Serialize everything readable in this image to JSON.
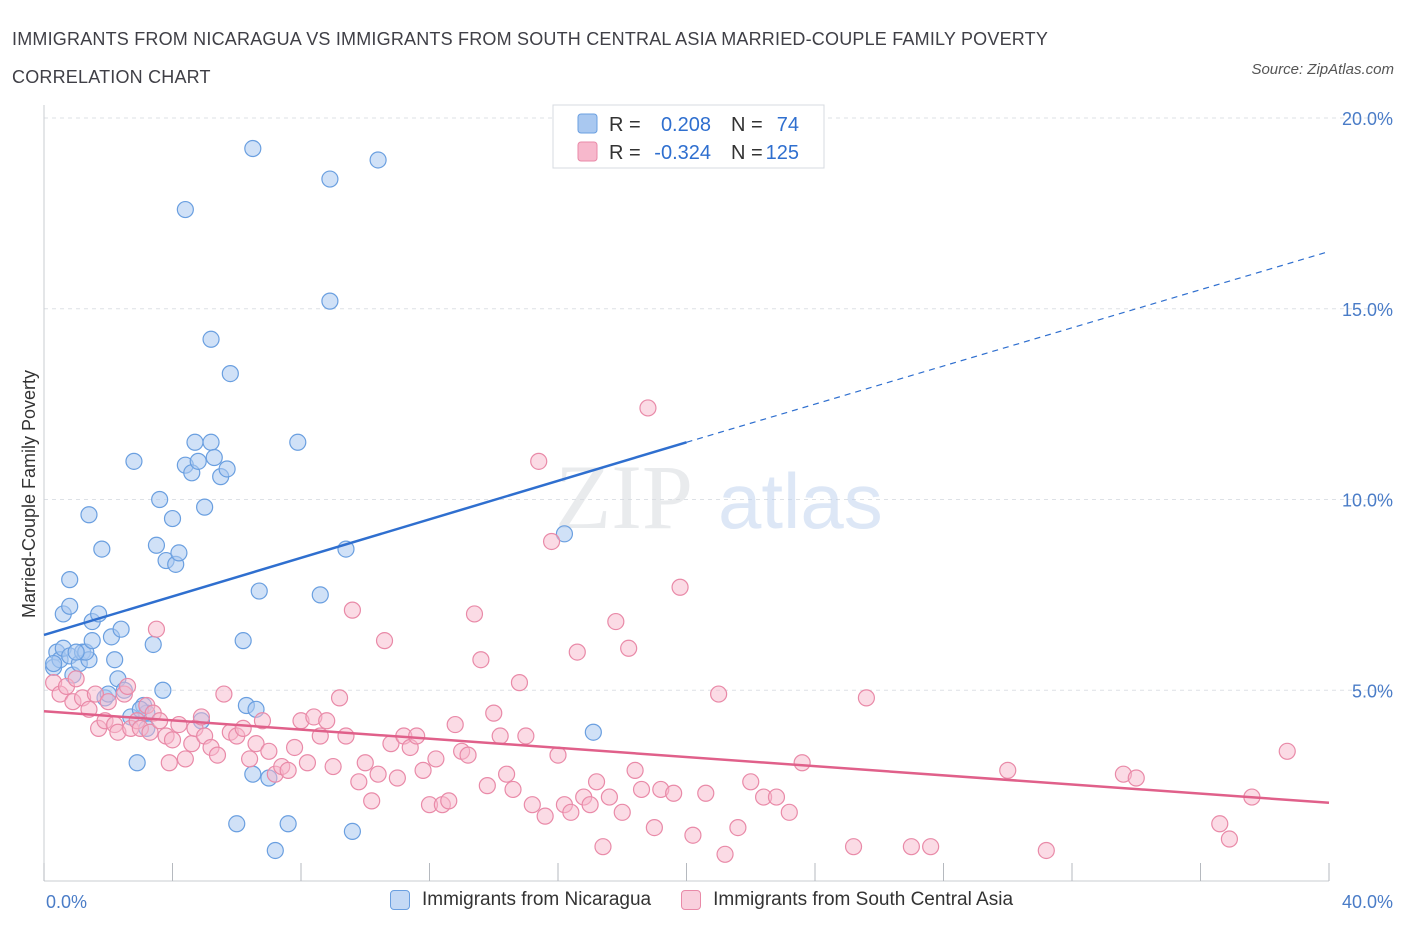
{
  "header": {
    "title": "IMMIGRANTS FROM NICARAGUA VS IMMIGRANTS FROM SOUTH CENTRAL ASIA MARRIED-COUPLE FAMILY POVERTY CORRELATION CHART",
    "source": "Source: ZipAtlas.com"
  },
  "watermark": {
    "zip": "ZIP",
    "atlas": "atlas"
  },
  "legend": {
    "r_label": "R =",
    "n_label": "N =",
    "series": [
      {
        "r": "0.208",
        "n": "74"
      },
      {
        "r": "-0.324",
        "n": "125"
      }
    ]
  },
  "bottom_legend": {
    "nicaragua": "Immigrants from Nicaragua",
    "south_central_asia": "Immigrants from South Central Asia"
  },
  "colors": {
    "blue_fill": "#a9c8f0",
    "blue_stroke": "#6a9fe0",
    "blue_line": "#2f6fcf",
    "pink_fill": "#f7b8cc",
    "pink_stroke": "#e98aa8",
    "pink_line": "#e0608a",
    "tick_text": "#4a7cc7",
    "grid": "#dde1e6"
  },
  "chart_data": {
    "type": "scatter",
    "title": "IMMIGRANTS FROM NICARAGUA VS IMMIGRANTS FROM SOUTH CENTRAL ASIA MARRIED-COUPLE FAMILY POVERTY CORRELATION CHART",
    "xlabel": "",
    "ylabel": "Married-Couple Family Poverty",
    "xlim": [
      0,
      40
    ],
    "ylim": [
      0,
      20
    ],
    "x_tick_labels": [
      "0.0%",
      "40.0%"
    ],
    "y_ticks": [
      5,
      10,
      15,
      20
    ],
    "y_tick_labels": [
      "5.0%",
      "10.0%",
      "15.0%",
      "20.0%"
    ],
    "grid": true,
    "legend_position": "top-center",
    "series": [
      {
        "name": "Immigrants from Nicaragua",
        "r": 0.208,
        "n": 74,
        "trend": {
          "x0": 0,
          "y0": 6.45,
          "x1": 20,
          "y1": 11.5,
          "dash_x1": 40,
          "dash_y1": 16.5
        },
        "points": [
          [
            0.3,
            5.6
          ],
          [
            0.4,
            6.0
          ],
          [
            0.5,
            5.8
          ],
          [
            0.6,
            6.1
          ],
          [
            0.8,
            5.9
          ],
          [
            0.9,
            5.4
          ],
          [
            1.1,
            5.7
          ],
          [
            1.2,
            6.0
          ],
          [
            0.6,
            7.0
          ],
          [
            0.8,
            7.2
          ],
          [
            0.8,
            7.9
          ],
          [
            1.4,
            9.6
          ],
          [
            1.4,
            5.8
          ],
          [
            1.3,
            6.0
          ],
          [
            1.5,
            6.3
          ],
          [
            1.5,
            6.8
          ],
          [
            1.7,
            7.0
          ],
          [
            1.8,
            8.7
          ],
          [
            1.9,
            4.8
          ],
          [
            2.1,
            6.4
          ],
          [
            2.2,
            5.8
          ],
          [
            2.3,
            5.3
          ],
          [
            2.4,
            6.6
          ],
          [
            2.5,
            5.0
          ],
          [
            2.7,
            4.3
          ],
          [
            2.9,
            3.1
          ],
          [
            3.1,
            4.6
          ],
          [
            3.2,
            4.0
          ],
          [
            3.2,
            4.4
          ],
          [
            3.4,
            6.2
          ],
          [
            3.5,
            8.8
          ],
          [
            3.7,
            5.0
          ],
          [
            3.8,
            8.4
          ],
          [
            4.1,
            8.3
          ],
          [
            4.2,
            8.6
          ],
          [
            3.6,
            10.0
          ],
          [
            4.0,
            9.5
          ],
          [
            2.8,
            11.0
          ],
          [
            4.4,
            10.9
          ],
          [
            4.6,
            10.7
          ],
          [
            4.7,
            11.5
          ],
          [
            4.8,
            11.0
          ],
          [
            5.0,
            9.8
          ],
          [
            5.2,
            11.5
          ],
          [
            5.3,
            11.1
          ],
          [
            5.5,
            10.6
          ],
          [
            5.7,
            10.8
          ],
          [
            5.8,
            13.3
          ],
          [
            5.2,
            14.2
          ],
          [
            4.4,
            17.6
          ],
          [
            6.5,
            19.2
          ],
          [
            6.2,
            6.3
          ],
          [
            6.3,
            4.6
          ],
          [
            6.5,
            2.8
          ],
          [
            6.6,
            4.5
          ],
          [
            6.7,
            7.6
          ],
          [
            7.0,
            2.7
          ],
          [
            7.2,
            0.8
          ],
          [
            7.6,
            1.5
          ],
          [
            7.9,
            11.5
          ],
          [
            8.6,
            7.5
          ],
          [
            8.9,
            15.2
          ],
          [
            8.9,
            18.4
          ],
          [
            9.4,
            8.7
          ],
          [
            9.6,
            1.3
          ],
          [
            10.4,
            18.9
          ],
          [
            6.0,
            1.5
          ],
          [
            16.2,
            9.1
          ],
          [
            17.1,
            3.9
          ],
          [
            0.3,
            5.7
          ],
          [
            1.0,
            6.0
          ],
          [
            2.0,
            4.9
          ],
          [
            3.0,
            4.5
          ],
          [
            4.9,
            4.2
          ]
        ]
      },
      {
        "name": "Immigrants from South Central Asia",
        "r": -0.324,
        "n": 125,
        "trend": {
          "x0": 0,
          "y0": 4.45,
          "x1": 40,
          "y1": 2.05
        },
        "points": [
          [
            0.3,
            5.2
          ],
          [
            0.5,
            4.9
          ],
          [
            0.7,
            5.1
          ],
          [
            0.9,
            4.7
          ],
          [
            1.0,
            5.3
          ],
          [
            1.2,
            4.8
          ],
          [
            1.4,
            4.5
          ],
          [
            1.6,
            4.9
          ],
          [
            1.7,
            4.0
          ],
          [
            1.9,
            4.2
          ],
          [
            2.0,
            4.7
          ],
          [
            2.2,
            4.1
          ],
          [
            2.3,
            3.9
          ],
          [
            2.5,
            4.9
          ],
          [
            2.6,
            5.1
          ],
          [
            2.7,
            4.0
          ],
          [
            2.9,
            4.2
          ],
          [
            3.0,
            4.0
          ],
          [
            3.2,
            4.6
          ],
          [
            3.3,
            3.9
          ],
          [
            3.4,
            4.4
          ],
          [
            3.5,
            6.6
          ],
          [
            3.6,
            4.2
          ],
          [
            3.8,
            3.8
          ],
          [
            3.9,
            3.1
          ],
          [
            4.0,
            3.7
          ],
          [
            4.2,
            4.1
          ],
          [
            4.4,
            3.2
          ],
          [
            4.6,
            3.6
          ],
          [
            4.7,
            4.0
          ],
          [
            4.9,
            4.3
          ],
          [
            5.0,
            3.8
          ],
          [
            5.2,
            3.5
          ],
          [
            5.4,
            3.3
          ],
          [
            5.6,
            4.9
          ],
          [
            5.8,
            3.9
          ],
          [
            6.0,
            3.8
          ],
          [
            6.2,
            4.0
          ],
          [
            6.4,
            3.2
          ],
          [
            6.6,
            3.6
          ],
          [
            6.8,
            4.2
          ],
          [
            7.0,
            3.4
          ],
          [
            7.2,
            2.8
          ],
          [
            7.4,
            3.0
          ],
          [
            7.6,
            2.9
          ],
          [
            7.8,
            3.5
          ],
          [
            8.0,
            4.2
          ],
          [
            8.2,
            3.1
          ],
          [
            8.4,
            4.3
          ],
          [
            8.6,
            3.8
          ],
          [
            8.8,
            4.2
          ],
          [
            9.0,
            3.0
          ],
          [
            9.2,
            4.8
          ],
          [
            9.4,
            3.8
          ],
          [
            9.6,
            7.1
          ],
          [
            9.8,
            2.6
          ],
          [
            10.0,
            3.1
          ],
          [
            10.2,
            2.1
          ],
          [
            10.4,
            2.8
          ],
          [
            10.6,
            6.3
          ],
          [
            10.8,
            3.6
          ],
          [
            11.0,
            2.7
          ],
          [
            11.2,
            3.8
          ],
          [
            11.4,
            3.5
          ],
          [
            11.6,
            3.8
          ],
          [
            11.8,
            2.9
          ],
          [
            12.0,
            2.0
          ],
          [
            12.2,
            3.2
          ],
          [
            12.4,
            2.0
          ],
          [
            12.6,
            2.1
          ],
          [
            12.8,
            4.1
          ],
          [
            13.0,
            3.4
          ],
          [
            13.2,
            3.3
          ],
          [
            13.4,
            7.0
          ],
          [
            13.6,
            5.8
          ],
          [
            13.8,
            2.5
          ],
          [
            14.0,
            4.4
          ],
          [
            14.2,
            3.8
          ],
          [
            14.4,
            2.8
          ],
          [
            14.6,
            2.4
          ],
          [
            14.8,
            5.2
          ],
          [
            15.0,
            3.8
          ],
          [
            15.2,
            2.0
          ],
          [
            15.4,
            11.0
          ],
          [
            15.6,
            1.7
          ],
          [
            15.8,
            8.9
          ],
          [
            16.0,
            3.3
          ],
          [
            16.2,
            2.0
          ],
          [
            16.4,
            1.8
          ],
          [
            16.6,
            6.0
          ],
          [
            16.8,
            2.2
          ],
          [
            17.0,
            2.0
          ],
          [
            17.2,
            2.6
          ],
          [
            17.4,
            0.9
          ],
          [
            17.6,
            2.2
          ],
          [
            17.8,
            6.8
          ],
          [
            18.0,
            1.8
          ],
          [
            18.2,
            6.1
          ],
          [
            18.4,
            2.9
          ],
          [
            18.6,
            2.4
          ],
          [
            18.8,
            12.4
          ],
          [
            19.0,
            1.4
          ],
          [
            19.2,
            2.4
          ],
          [
            19.6,
            2.3
          ],
          [
            19.8,
            7.7
          ],
          [
            20.2,
            1.2
          ],
          [
            20.6,
            2.3
          ],
          [
            21.0,
            4.9
          ],
          [
            21.2,
            0.7
          ],
          [
            21.6,
            1.4
          ],
          [
            22.0,
            2.6
          ],
          [
            22.4,
            2.2
          ],
          [
            22.8,
            2.2
          ],
          [
            23.2,
            1.8
          ],
          [
            23.6,
            3.1
          ],
          [
            25.2,
            0.9
          ],
          [
            25.6,
            4.8
          ],
          [
            27.0,
            0.9
          ],
          [
            27.6,
            0.9
          ],
          [
            30.0,
            2.9
          ],
          [
            31.2,
            0.8
          ],
          [
            33.6,
            2.8
          ],
          [
            34.0,
            2.7
          ],
          [
            36.6,
            1.5
          ],
          [
            36.9,
            1.1
          ],
          [
            37.6,
            2.2
          ],
          [
            38.7,
            3.4
          ]
        ]
      }
    ]
  }
}
